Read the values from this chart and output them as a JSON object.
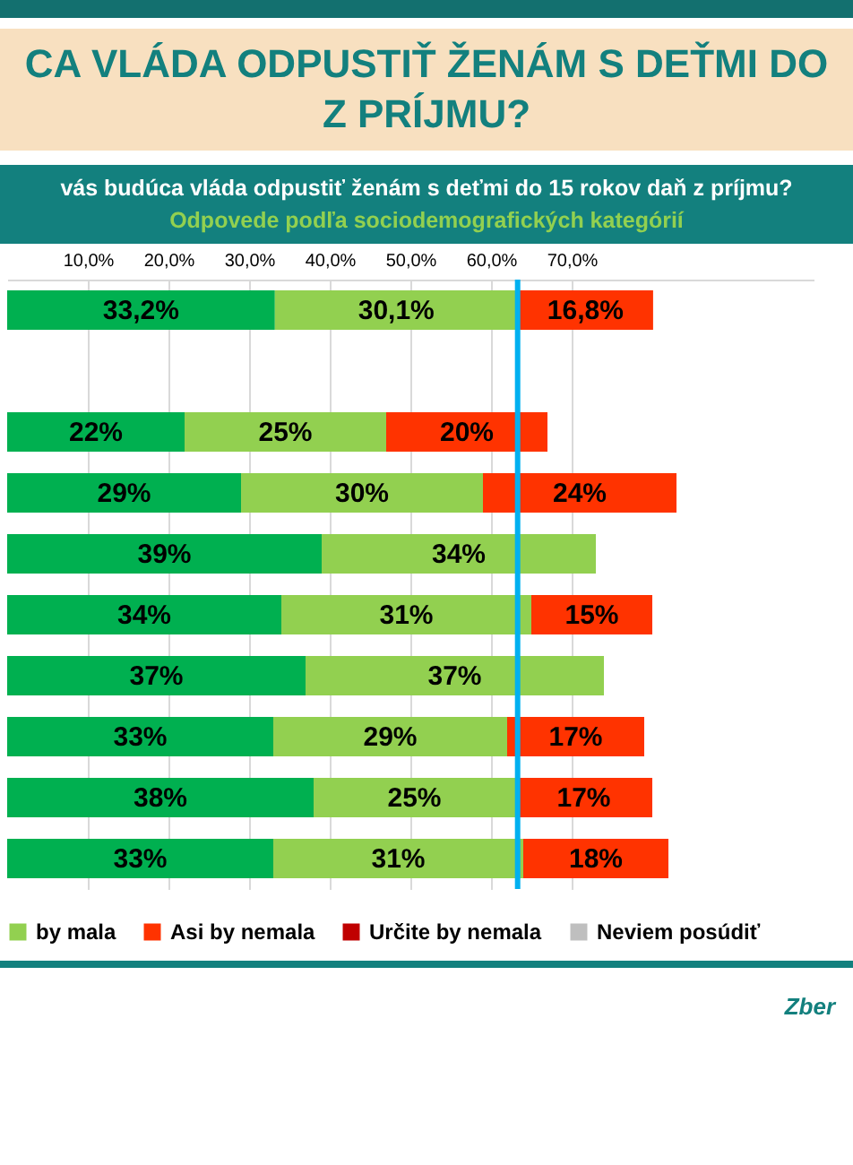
{
  "chart_data": {
    "type": "bar",
    "orientation": "horizontal",
    "stacked": true,
    "title": "CA VLÁDA ODPUSTIŤ ŽENÁM S DEŤMI DO\nZ PRÍJMU?",
    "subtitle": "vás budúca vláda odpustiť ženám s deťmi do 15 rokov daň z príjmu?",
    "annotations": [
      "Odpovede podľa sociodemografických kategórií",
      "Zber"
    ],
    "categories": [
      null,
      null,
      null,
      null,
      null,
      null,
      null,
      null,
      null,
      null
    ],
    "series": [
      {
        "color": "#00b050",
        "values": [
          33.2,
          null,
          22,
          29,
          39,
          34,
          37,
          33,
          38,
          33
        ],
        "value_labels": [
          "33,2%",
          null,
          "22%",
          "29%",
          "39%",
          "34%",
          "37%",
          "33%",
          "38%",
          "33%"
        ]
      },
      {
        "name": "by mala",
        "color": "#92d050",
        "values": [
          30.1,
          null,
          25,
          30,
          34,
          31,
          37,
          29,
          25,
          31
        ],
        "value_labels": [
          "30,1%",
          null,
          "25%",
          "30%",
          "34%",
          "31%",
          "37%",
          "29%",
          "25%",
          "31%"
        ]
      },
      {
        "name": "Asi by nemala",
        "color": "#ff3300",
        "values": [
          16.8,
          null,
          20,
          24,
          null,
          15,
          null,
          17,
          17,
          18
        ],
        "value_labels": [
          "16,8%",
          null,
          "20%",
          "24%",
          null,
          "15%",
          null,
          "17%",
          "17%",
          "18%"
        ]
      },
      {
        "name": "Určite by nemala",
        "color": "#c00000",
        "values": [
          null,
          null,
          null,
          null,
          null,
          null,
          null,
          null,
          null,
          null
        ]
      },
      {
        "name": "Neviem posúdiť",
        "color": "#bfbfbf",
        "values": [
          null,
          null,
          null,
          null,
          null,
          null,
          null,
          null,
          null,
          null
        ]
      }
    ],
    "xlim": [
      0,
      100
    ],
    "xticks": [
      {
        "value": 10,
        "label": "10,0%"
      },
      {
        "value": 20,
        "label": "20,0%"
      },
      {
        "value": 30,
        "label": "30,0%"
      },
      {
        "value": 40,
        "label": "40,0%"
      },
      {
        "value": 50,
        "label": "50,0%"
      },
      {
        "value": 60,
        "label": "60,0%"
      },
      {
        "value": 70,
        "label": "70,0%"
      }
    ],
    "ref_lines": [
      {
        "axis": "x",
        "value": 63.3,
        "color": "#00b0f0"
      }
    ],
    "grid": "x",
    "legend": "bottom"
  }
}
